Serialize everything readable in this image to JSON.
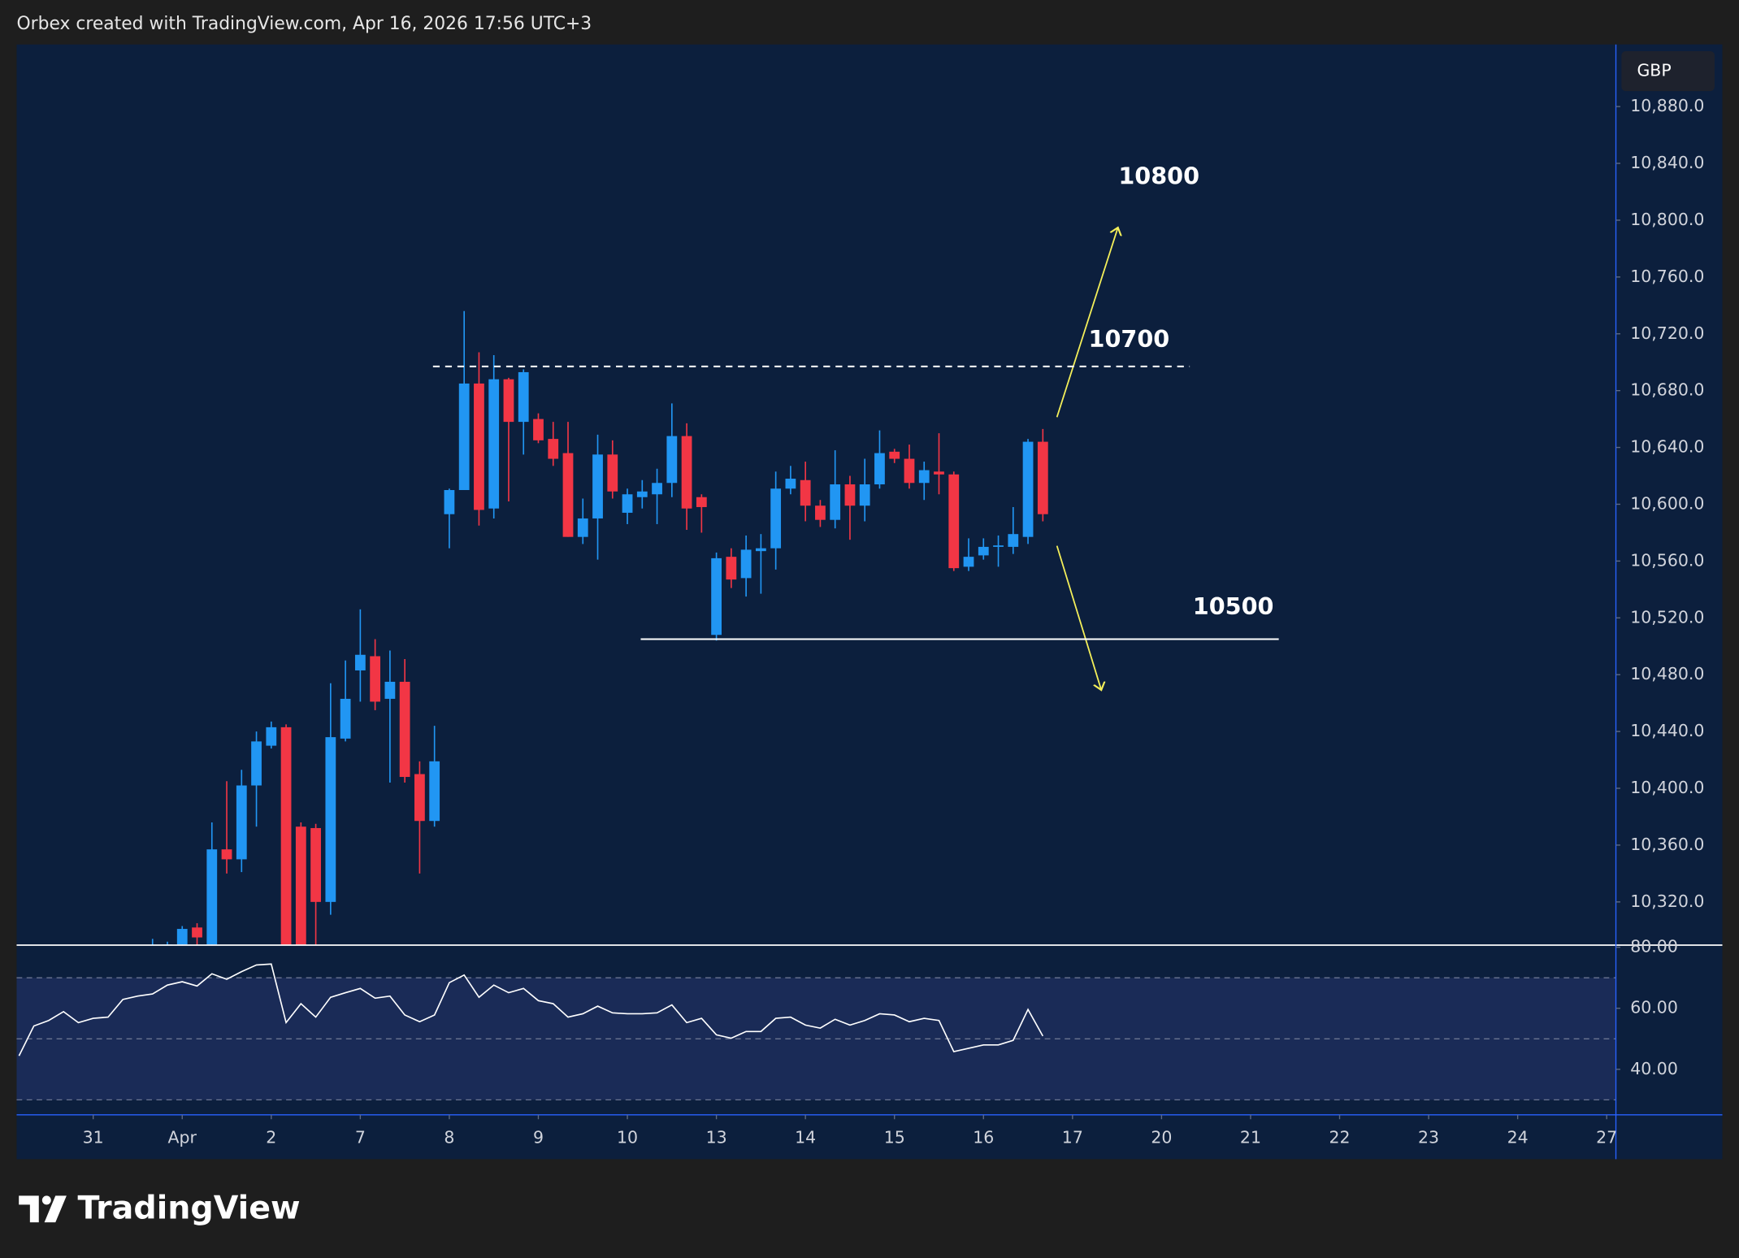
{
  "header": {
    "caption": "Orbex created with TradingView.com, Apr 16, 2026 17:56 UTC+3",
    "currency": "GBP",
    "logo": "TradingView"
  },
  "chart_data": [
    {
      "type": "candlestick",
      "up_color": "#2196f3",
      "down_color": "#f23645",
      "x": [
        4,
        5,
        6,
        7,
        8,
        9,
        10,
        11,
        12,
        13,
        14,
        15,
        16,
        17,
        18,
        19,
        20,
        21,
        22,
        23,
        24,
        25,
        26,
        27,
        28,
        29,
        30,
        31,
        32,
        33,
        34,
        35,
        36,
        37,
        38,
        39,
        40,
        41,
        42,
        43,
        44,
        45,
        46,
        47,
        48,
        49,
        50,
        51,
        52,
        53,
        54,
        55,
        56,
        57,
        58,
        59,
        60,
        61,
        62,
        63,
        64
      ],
      "open": [
        10285,
        10288,
        10290,
        10302,
        10290,
        10357,
        10350,
        10402,
        10430,
        10443,
        10373,
        10372,
        10320,
        10435,
        10483,
        10493,
        10463,
        10475,
        10410,
        10377,
        10593,
        10610,
        10685,
        10597,
        10688,
        10658,
        10660,
        10646,
        10636,
        10577,
        10590,
        10635,
        10594,
        10605,
        10607,
        10615,
        10648,
        10605,
        10508,
        10563,
        10548,
        10567,
        10569,
        10611,
        10617,
        10599,
        10589,
        10614,
        10599,
        10614,
        10637,
        10632,
        10615,
        10623,
        10621,
        10556,
        10564,
        10570,
        10570,
        10577,
        10644
      ],
      "high": [
        10294,
        10292,
        10303,
        10305,
        10376,
        10405,
        10413,
        10440,
        10447,
        10445,
        10376,
        10375,
        10474,
        10490,
        10526,
        10505,
        10497,
        10491,
        10419,
        10444,
        10611,
        10736,
        10707,
        10705,
        10689,
        10695,
        10664,
        10658,
        10658,
        10604,
        10649,
        10645,
        10611,
        10617,
        10625,
        10671,
        10657,
        10607,
        10566,
        10569,
        10578,
        10579,
        10623,
        10627,
        10630,
        10603,
        10638,
        10620,
        10632,
        10652,
        10639,
        10642,
        10630,
        10650,
        10623,
        10576,
        10576,
        10578,
        10598,
        10646,
        10653
      ],
      "low": [
        10270,
        10275,
        10280,
        10285,
        10285,
        10340,
        10341,
        10373,
        10428,
        10270,
        10270,
        10290,
        10311,
        10433,
        10461,
        10455,
        10404,
        10404,
        10340,
        10373,
        10569,
        10610,
        10585,
        10590,
        10602,
        10635,
        10643,
        10627,
        10577,
        10572,
        10561,
        10604,
        10586,
        10597,
        10586,
        10605,
        10582,
        10580,
        10504,
        10541,
        10535,
        10537,
        10554,
        10607,
        10588,
        10584,
        10583,
        10575,
        10588,
        10611,
        10629,
        10611,
        10603,
        10607,
        10553,
        10553,
        10561,
        10556,
        10565,
        10572,
        10588
      ],
      "close": [
        10288,
        10290,
        10301,
        10295,
        10357,
        10350,
        10402,
        10433,
        10443,
        10280,
        10280,
        10320,
        10436,
        10463,
        10494,
        10461,
        10475,
        10408,
        10377,
        10419,
        10610,
        10685,
        10596,
        10688,
        10658,
        10693,
        10645,
        10632,
        10577,
        10590,
        10635,
        10609,
        10607,
        10609,
        10615,
        10648,
        10597,
        10598,
        10562,
        10547,
        10568,
        10569,
        10611,
        10618,
        10599,
        10589,
        10614,
        10599,
        10614,
        10636,
        10632,
        10615,
        10624,
        10621,
        10555,
        10563,
        10570,
        10571,
        10579,
        10644,
        10593
      ],
      "xlim": [
        -5.16,
        102.62
      ],
      "xticks": [
        {
          "value": 0,
          "label": "31"
        },
        {
          "value": 6,
          "label": "Apr"
        },
        {
          "value": 12,
          "label": "2"
        },
        {
          "value": 18,
          "label": "7"
        },
        {
          "value": 24,
          "label": "8"
        },
        {
          "value": 30,
          "label": "9"
        },
        {
          "value": 36,
          "label": "10"
        },
        {
          "value": 42,
          "label": "13"
        },
        {
          "value": 48,
          "label": "14"
        },
        {
          "value": 54,
          "label": "15"
        },
        {
          "value": 60,
          "label": "16"
        },
        {
          "value": 66,
          "label": "17"
        },
        {
          "value": 72,
          "label": "20"
        },
        {
          "value": 78,
          "label": "21"
        },
        {
          "value": 84,
          "label": "22"
        },
        {
          "value": 90,
          "label": "23"
        },
        {
          "value": 96,
          "label": "24"
        },
        {
          "value": 102,
          "label": "27"
        }
      ],
      "ylim": [
        10289.6,
        10923.7
      ],
      "yticks": [
        {
          "value": 10320,
          "label": "10,320.0"
        },
        {
          "value": 10360,
          "label": "10,360.0"
        },
        {
          "value": 10400,
          "label": "10,400.0"
        },
        {
          "value": 10440,
          "label": "10,440.0"
        },
        {
          "value": 10480,
          "label": "10,480.0"
        },
        {
          "value": 10520,
          "label": "10,520.0"
        },
        {
          "value": 10560,
          "label": "10,560.0"
        },
        {
          "value": 10600,
          "label": "10,600.0"
        },
        {
          "value": 10640,
          "label": "10,640.0"
        },
        {
          "value": 10680,
          "label": "10,680.0"
        },
        {
          "value": 10720,
          "label": "10,720.0"
        },
        {
          "value": 10760,
          "label": "10,760.0"
        },
        {
          "value": 10800,
          "label": "10,800.0"
        },
        {
          "value": 10840,
          "label": "10,840.0"
        },
        {
          "value": 10880,
          "label": "10,880.0"
        }
      ],
      "levels": [
        {
          "value": 10697,
          "start": 22.9,
          "end": 73.9,
          "style": "dashed",
          "color": "#ffffff"
        },
        {
          "value": 10505,
          "start": 36.9,
          "end": 79.9,
          "style": "solid",
          "color": "#ffffff"
        }
      ],
      "annotations": [
        "10800",
        "10700",
        "10500"
      ]
    },
    {
      "type": "line",
      "color": "#ffffff",
      "x": [
        -5,
        -4,
        -3,
        -2,
        -1,
        0,
        1,
        2,
        3,
        4,
        5,
        6,
        7,
        8,
        9,
        10,
        11,
        12,
        13,
        14,
        15,
        16,
        17,
        18,
        19,
        20,
        21,
        22,
        23,
        24,
        25,
        26,
        27,
        28,
        29,
        30,
        31,
        32,
        33,
        34,
        35,
        36,
        37,
        38,
        39,
        40,
        41,
        42,
        43,
        44,
        45,
        46,
        47,
        48,
        49,
        50,
        51,
        52,
        53,
        54,
        55,
        56,
        57,
        58,
        59,
        60,
        61,
        62,
        63,
        64
      ],
      "values": [
        44.4,
        54.2,
        56,
        58.9,
        55.3,
        56.7,
        57.1,
        62.9,
        64,
        64.7,
        67.6,
        68.7,
        67.3,
        71.3,
        69.5,
        72,
        74.2,
        74.5,
        55.3,
        61.5,
        57.1,
        63.6,
        65.1,
        66.5,
        63.3,
        64,
        57.8,
        55.6,
        57.8,
        68.4,
        70.9,
        63.6,
        67.6,
        65.1,
        66.5,
        62.5,
        61.5,
        57.1,
        58.2,
        60.7,
        58.5,
        58.2,
        58.2,
        58.5,
        61.1,
        55.3,
        56.7,
        51.3,
        50.2,
        52.4,
        52.4,
        56.7,
        57.1,
        54.5,
        53.5,
        56.4,
        54.5,
        56,
        58.2,
        57.8,
        55.6,
        56.7,
        56,
        45.8,
        46.9,
        48,
        48,
        49.5,
        59.6,
        50.9
      ],
      "xlim": [
        -5.16,
        102.62
      ],
      "ylim": [
        25.1,
        80.7
      ],
      "yticks": [
        {
          "value": 40,
          "label": "40.00"
        },
        {
          "value": 60,
          "label": "60.00"
        },
        {
          "value": 80,
          "label": "80.00"
        }
      ],
      "band": [
        30,
        70
      ],
      "hlines": [
        30,
        50,
        70
      ]
    }
  ]
}
